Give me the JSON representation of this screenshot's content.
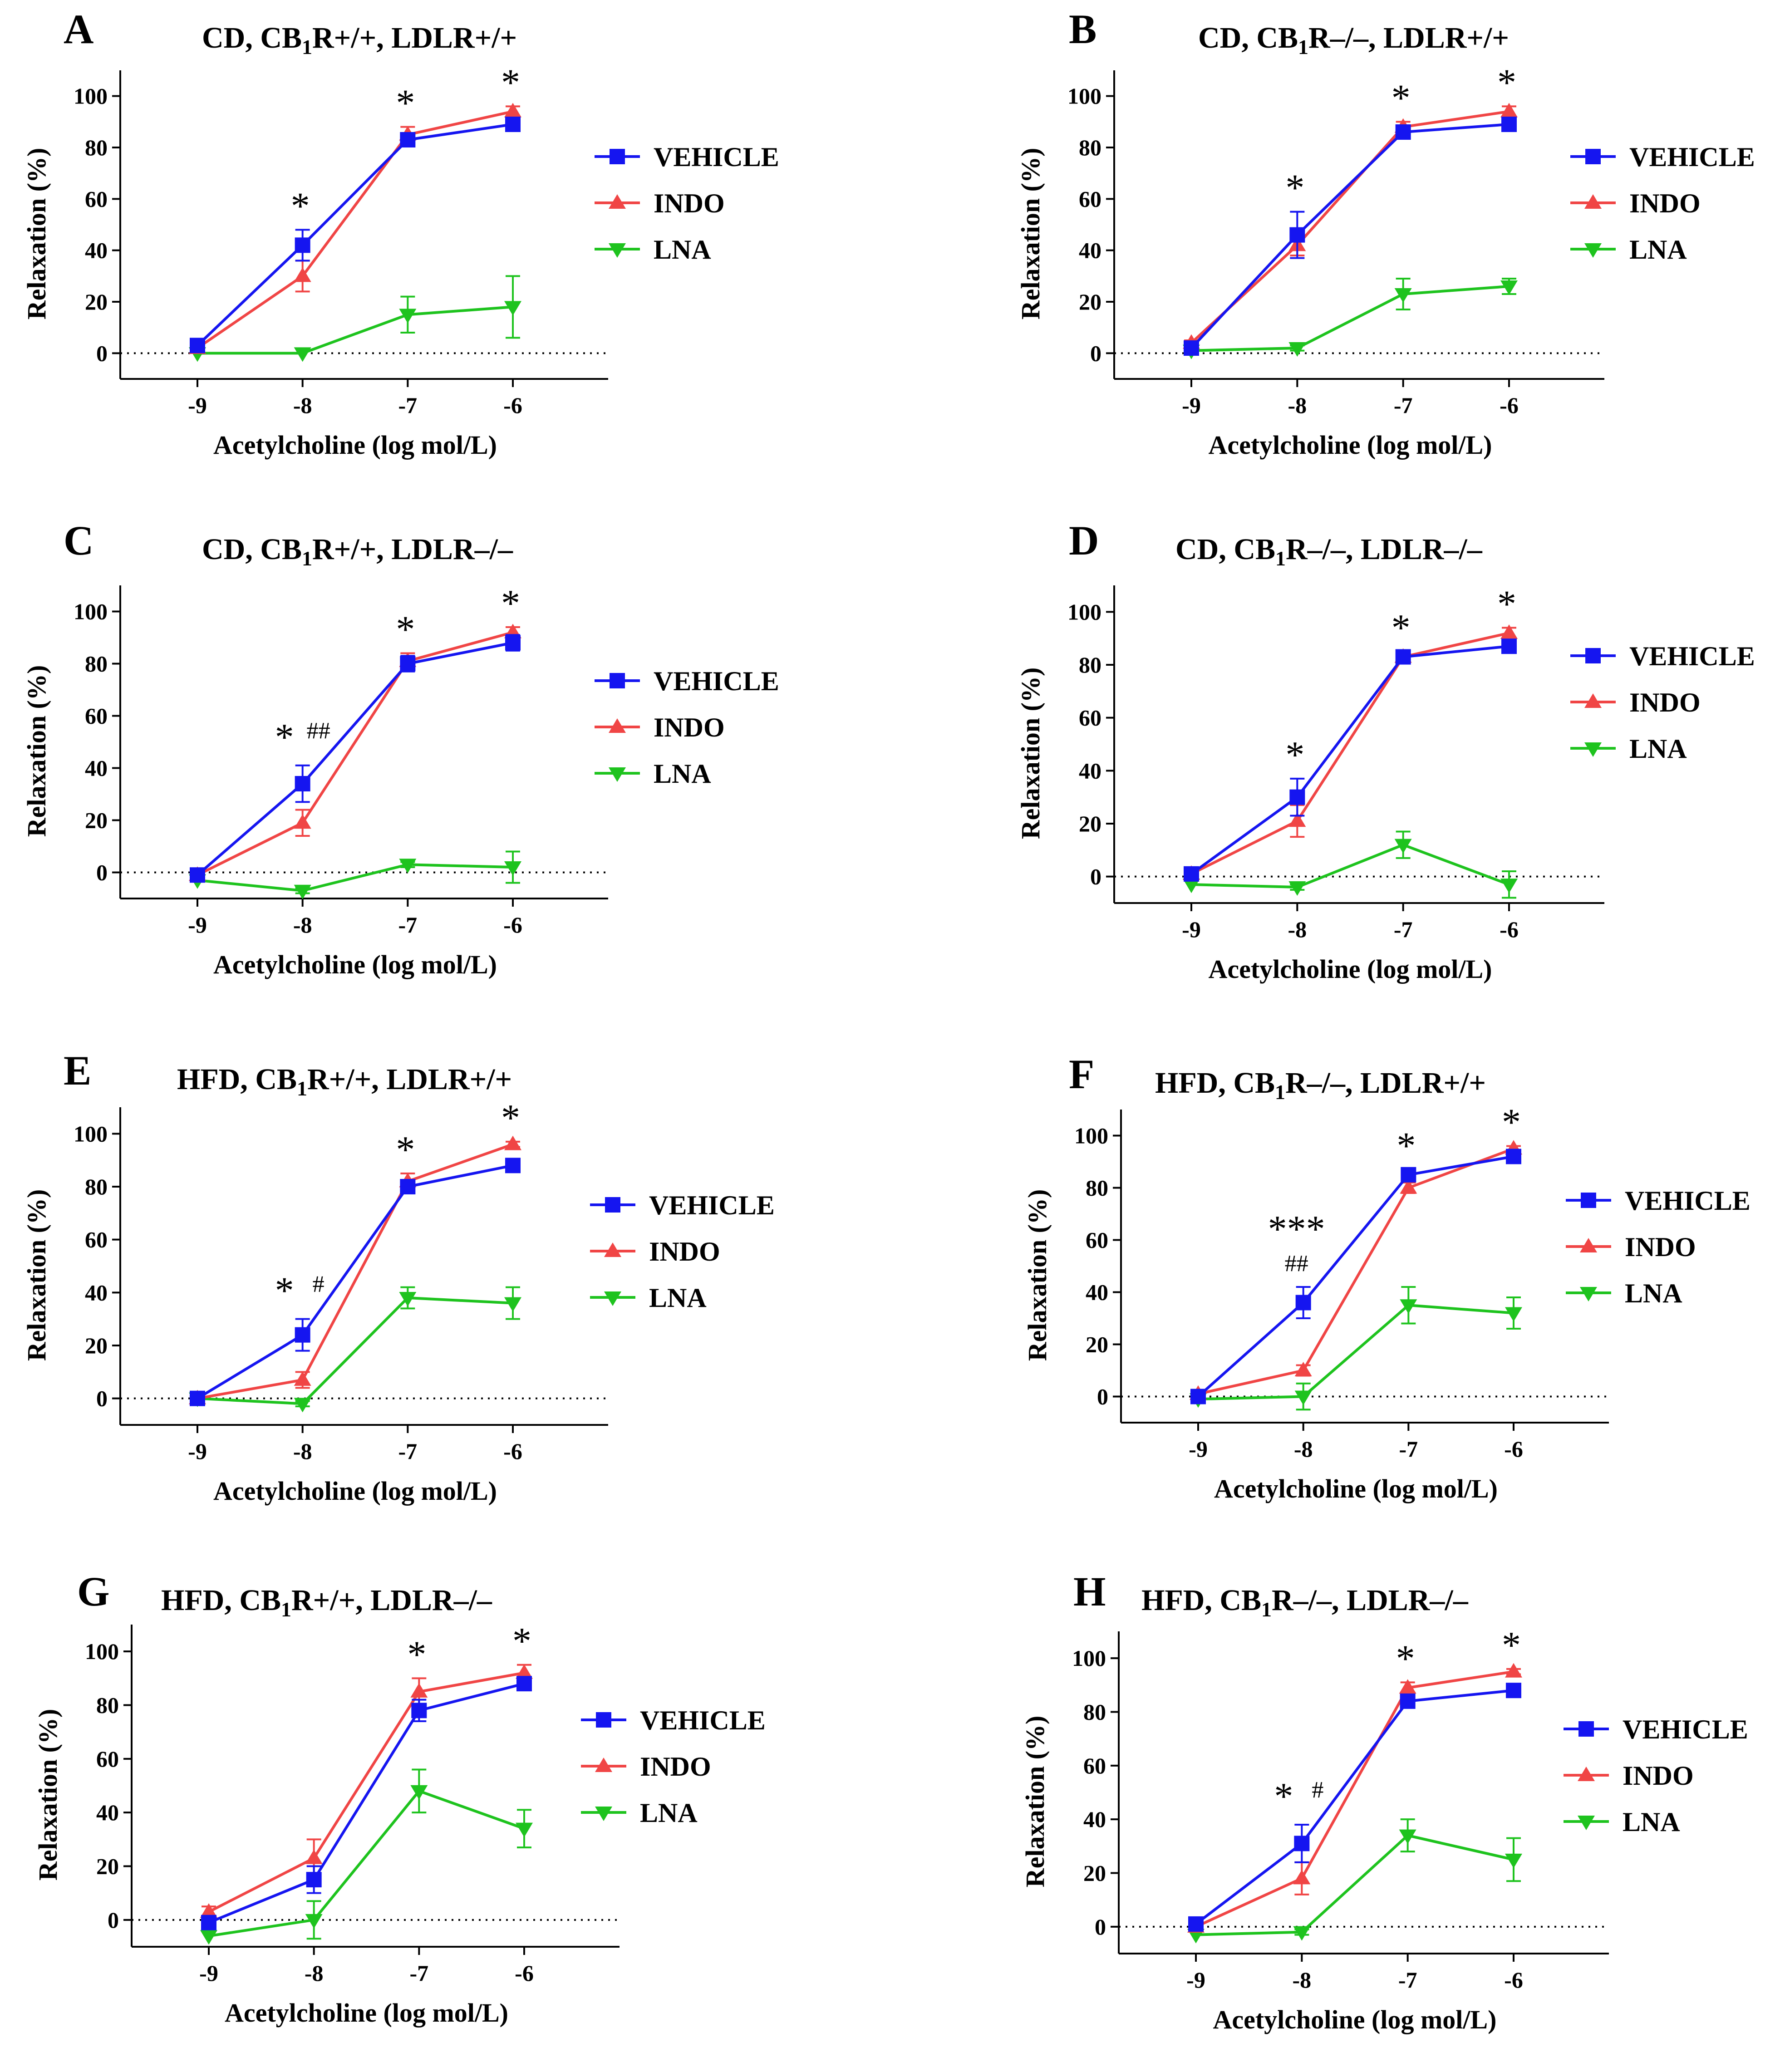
{
  "colors": {
    "vehicle": "#1515f0",
    "indo": "#f04545",
    "lna": "#1ec31e",
    "axis": "#000000"
  },
  "chart_data": [
    {
      "panel": "A",
      "title_parts": [
        "CD, CB",
        "1",
        "R+/+, LDLR+/+"
      ],
      "type": "line",
      "xlabel": "Acetylcholine (log mol/L)",
      "ylabel": "Relaxation (%)",
      "x": [
        -9,
        -8,
        -7,
        -6
      ],
      "xticks": [
        "-9",
        "-8",
        "-7",
        "-6"
      ],
      "ylim": [
        -10,
        110
      ],
      "yticks": [
        "0",
        "20",
        "40",
        "60",
        "80",
        "100"
      ],
      "series": [
        {
          "name": "VEHICLE",
          "key": "vehicle",
          "marker": "square",
          "values": [
            3,
            42,
            83,
            89
          ],
          "err": [
            1,
            6,
            2,
            2
          ]
        },
        {
          "name": "INDO",
          "key": "indo",
          "marker": "triangle-up",
          "values": [
            2,
            30,
            85,
            94
          ],
          "err": [
            1,
            6,
            3,
            2
          ]
        },
        {
          "name": "LNA",
          "key": "lna",
          "marker": "triangle-down",
          "values": [
            0,
            0,
            15,
            18
          ],
          "err": [
            0,
            0,
            7,
            12
          ]
        }
      ],
      "annotations": [
        {
          "x": -8,
          "stars": "*"
        },
        {
          "x": -7,
          "stars": "*"
        },
        {
          "x": -6,
          "stars": "*"
        }
      ]
    },
    {
      "panel": "B",
      "title_parts": [
        "CD, CB",
        "1",
        "R–/–, LDLR+/+"
      ],
      "type": "line",
      "xlabel": "Acetylcholine (log mol/L)",
      "ylabel": "Relaxation (%)",
      "x": [
        -9,
        -8,
        -7,
        -6
      ],
      "xticks": [
        "-9",
        "-8",
        "-7",
        "-6"
      ],
      "ylim": [
        -10,
        110
      ],
      "yticks": [
        "0",
        "20",
        "40",
        "60",
        "80",
        "100"
      ],
      "series": [
        {
          "name": "VEHICLE",
          "key": "vehicle",
          "marker": "square",
          "values": [
            2,
            46,
            86,
            89
          ],
          "err": [
            1,
            9,
            2,
            2
          ]
        },
        {
          "name": "INDO",
          "key": "indo",
          "marker": "triangle-up",
          "values": [
            4,
            42,
            88,
            94
          ],
          "err": [
            1,
            4,
            2,
            2
          ]
        },
        {
          "name": "LNA",
          "key": "lna",
          "marker": "triangle-down",
          "values": [
            1,
            2,
            23,
            26
          ],
          "err": [
            0,
            1,
            6,
            3
          ]
        }
      ],
      "annotations": [
        {
          "x": -8,
          "stars": "*"
        },
        {
          "x": -7,
          "stars": "*"
        },
        {
          "x": -6,
          "stars": "*"
        }
      ]
    },
    {
      "panel": "C",
      "title_parts": [
        "CD, CB",
        "1",
        "R+/+, LDLR–/–"
      ],
      "type": "line",
      "xlabel": "Acetylcholine (log mol/L)",
      "ylabel": "Relaxation (%)",
      "x": [
        -9,
        -8,
        -7,
        -6
      ],
      "xticks": [
        "-9",
        "-8",
        "-7",
        "-6"
      ],
      "ylim": [
        -10,
        110
      ],
      "yticks": [
        "0",
        "20",
        "40",
        "60",
        "80",
        "100"
      ],
      "series": [
        {
          "name": "VEHICLE",
          "key": "vehicle",
          "marker": "square",
          "values": [
            -1,
            34,
            80,
            88
          ],
          "err": [
            1,
            7,
            3,
            3
          ]
        },
        {
          "name": "INDO",
          "key": "indo",
          "marker": "triangle-up",
          "values": [
            -1,
            19,
            81,
            92
          ],
          "err": [
            1,
            5,
            3,
            2
          ]
        },
        {
          "name": "LNA",
          "key": "lna",
          "marker": "triangle-down",
          "values": [
            -3,
            -7,
            3,
            2
          ],
          "err": [
            0,
            1,
            1,
            6
          ]
        }
      ],
      "annotations": [
        {
          "x": -8,
          "stars": "*",
          "hash": "##"
        },
        {
          "x": -7,
          "stars": "*"
        },
        {
          "x": -6,
          "stars": "*"
        }
      ]
    },
    {
      "panel": "D",
      "title_parts": [
        "CD, CB",
        "1",
        "R–/–, LDLR–/–"
      ],
      "type": "line",
      "xlabel": "Acetylcholine (log mol/L)",
      "ylabel": "Relaxation (%)",
      "x": [
        -9,
        -8,
        -7,
        -6
      ],
      "xticks": [
        "-9",
        "-8",
        "-7",
        "-6"
      ],
      "ylim": [
        -10,
        110
      ],
      "yticks": [
        "0",
        "20",
        "40",
        "60",
        "80",
        "100"
      ],
      "series": [
        {
          "name": "VEHICLE",
          "key": "vehicle",
          "marker": "square",
          "values": [
            1,
            30,
            83,
            87
          ],
          "err": [
            1,
            7,
            2,
            2
          ]
        },
        {
          "name": "INDO",
          "key": "indo",
          "marker": "triangle-up",
          "values": [
            1,
            21,
            83,
            92
          ],
          "err": [
            1,
            6,
            2,
            2
          ]
        },
        {
          "name": "LNA",
          "key": "lna",
          "marker": "triangle-down",
          "values": [
            -3,
            -4,
            12,
            -3
          ],
          "err": [
            0,
            1,
            5,
            5
          ]
        }
      ],
      "annotations": [
        {
          "x": -8,
          "stars": "*"
        },
        {
          "x": -7,
          "stars": "*"
        },
        {
          "x": -6,
          "stars": "*"
        }
      ]
    },
    {
      "panel": "E",
      "title_parts": [
        "HFD, CB",
        "1",
        "R+/+, LDLR+/+"
      ],
      "type": "line",
      "xlabel": "Acetylcholine (log mol/L)",
      "ylabel": "Relaxation (%)",
      "x": [
        -9,
        -8,
        -7,
        -6
      ],
      "xticks": [
        "-9",
        "-8",
        "-7",
        "-6"
      ],
      "ylim": [
        -10,
        110
      ],
      "yticks": [
        "0",
        "20",
        "40",
        "60",
        "80",
        "100"
      ],
      "series": [
        {
          "name": "VEHICLE",
          "key": "vehicle",
          "marker": "square",
          "values": [
            0,
            24,
            80,
            88
          ],
          "err": [
            1,
            6,
            2,
            2
          ]
        },
        {
          "name": "INDO",
          "key": "indo",
          "marker": "triangle-up",
          "values": [
            0,
            7,
            82,
            96
          ],
          "err": [
            1,
            3,
            3,
            1
          ]
        },
        {
          "name": "LNA",
          "key": "lna",
          "marker": "triangle-down",
          "values": [
            0,
            -2,
            38,
            36
          ],
          "err": [
            0,
            1,
            4,
            6
          ]
        }
      ],
      "annotations": [
        {
          "x": -8,
          "stars": "*",
          "hash": "#",
          "inline": true
        },
        {
          "x": -7,
          "stars": "*"
        },
        {
          "x": -6,
          "stars": "*"
        }
      ]
    },
    {
      "panel": "F",
      "title_parts": [
        "HFD, CB",
        "1",
        "R–/–, LDLR+/+"
      ],
      "type": "line",
      "xlabel": "Acetylcholine (log mol/L)",
      "ylabel": "Relaxation (%)",
      "x": [
        -9,
        -8,
        -7,
        -6
      ],
      "xticks": [
        "-9",
        "-8",
        "-7",
        "-6"
      ],
      "ylim": [
        -10,
        110
      ],
      "yticks": [
        "0",
        "20",
        "40",
        "60",
        "80",
        "100"
      ],
      "series": [
        {
          "name": "VEHICLE",
          "key": "vehicle",
          "marker": "square",
          "values": [
            0,
            36,
            85,
            92
          ],
          "err": [
            1,
            6,
            2,
            2
          ]
        },
        {
          "name": "INDO",
          "key": "indo",
          "marker": "triangle-up",
          "values": [
            1,
            10,
            80,
            95
          ],
          "err": [
            1,
            2,
            2,
            1
          ]
        },
        {
          "name": "LNA",
          "key": "lna",
          "marker": "triangle-down",
          "values": [
            -1,
            0,
            35,
            32
          ],
          "err": [
            0,
            5,
            7,
            6
          ]
        }
      ],
      "annotations": [
        {
          "x": -8,
          "stars": "***",
          "hash": "##",
          "stacked": true
        },
        {
          "x": -7,
          "stars": "*"
        },
        {
          "x": -6,
          "stars": "*"
        }
      ]
    },
    {
      "panel": "G",
      "title_parts": [
        "HFD, CB",
        "1",
        "R+/+, LDLR–/–"
      ],
      "type": "line",
      "xlabel": "Acetylcholine (log mol/L)",
      "ylabel": "Relaxation (%)",
      "x": [
        -9,
        -8,
        -7,
        -6
      ],
      "xticks": [
        "-9",
        "-8",
        "-7",
        "-6"
      ],
      "ylim": [
        -10,
        110
      ],
      "yticks": [
        "0",
        "20",
        "40",
        "60",
        "80",
        "100"
      ],
      "series": [
        {
          "name": "VEHICLE",
          "key": "vehicle",
          "marker": "square",
          "values": [
            -1,
            15,
            78,
            88
          ],
          "err": [
            1,
            5,
            4,
            2
          ]
        },
        {
          "name": "INDO",
          "key": "indo",
          "marker": "triangle-up",
          "values": [
            3,
            23,
            85,
            92
          ],
          "err": [
            2,
            7,
            5,
            3
          ]
        },
        {
          "name": "LNA",
          "key": "lna",
          "marker": "triangle-down",
          "values": [
            -6,
            0,
            48,
            34
          ],
          "err": [
            0,
            7,
            8,
            7
          ]
        }
      ],
      "annotations": [
        {
          "x": -7,
          "stars": "*"
        },
        {
          "x": -6,
          "stars": "*"
        }
      ]
    },
    {
      "panel": "H",
      "title_parts": [
        "HFD, CB",
        "1",
        "R–/–, LDLR–/–"
      ],
      "type": "line",
      "xlabel": "Acetylcholine (log mol/L)",
      "ylabel": "Relaxation (%)",
      "x": [
        -9,
        -8,
        -7,
        -6
      ],
      "xticks": [
        "-9",
        "-8",
        "-7",
        "-6"
      ],
      "ylim": [
        -10,
        110
      ],
      "yticks": [
        "0",
        "20",
        "40",
        "60",
        "80",
        "100"
      ],
      "series": [
        {
          "name": "VEHICLE",
          "key": "vehicle",
          "marker": "square",
          "values": [
            1,
            31,
            84,
            88
          ],
          "err": [
            1,
            7,
            2,
            2
          ]
        },
        {
          "name": "INDO",
          "key": "indo",
          "marker": "triangle-up",
          "values": [
            0,
            18,
            89,
            95
          ],
          "err": [
            1,
            6,
            2,
            1
          ]
        },
        {
          "name": "LNA",
          "key": "lna",
          "marker": "triangle-down",
          "values": [
            -3,
            -2,
            34,
            25
          ],
          "err": [
            0,
            1,
            6,
            8
          ]
        }
      ],
      "annotations": [
        {
          "x": -8,
          "stars": "*",
          "hash": "#",
          "inline": true
        },
        {
          "x": -7,
          "stars": "*"
        },
        {
          "x": -6,
          "stars": "*"
        }
      ]
    }
  ]
}
